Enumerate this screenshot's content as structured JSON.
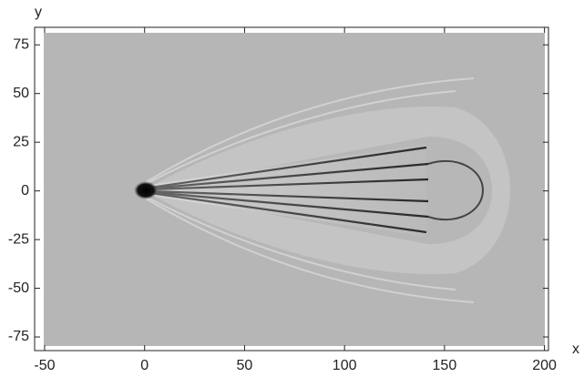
{
  "chart_data": {
    "type": "density",
    "x_label": "x",
    "y_label": "y",
    "xlim": [
      -55,
      202
    ],
    "ylim": [
      -82,
      84
    ],
    "xticks": [
      -50,
      0,
      50,
      100,
      150,
      200
    ],
    "yticks": [
      -75,
      -50,
      -25,
      0,
      25,
      50,
      75
    ]
  }
}
